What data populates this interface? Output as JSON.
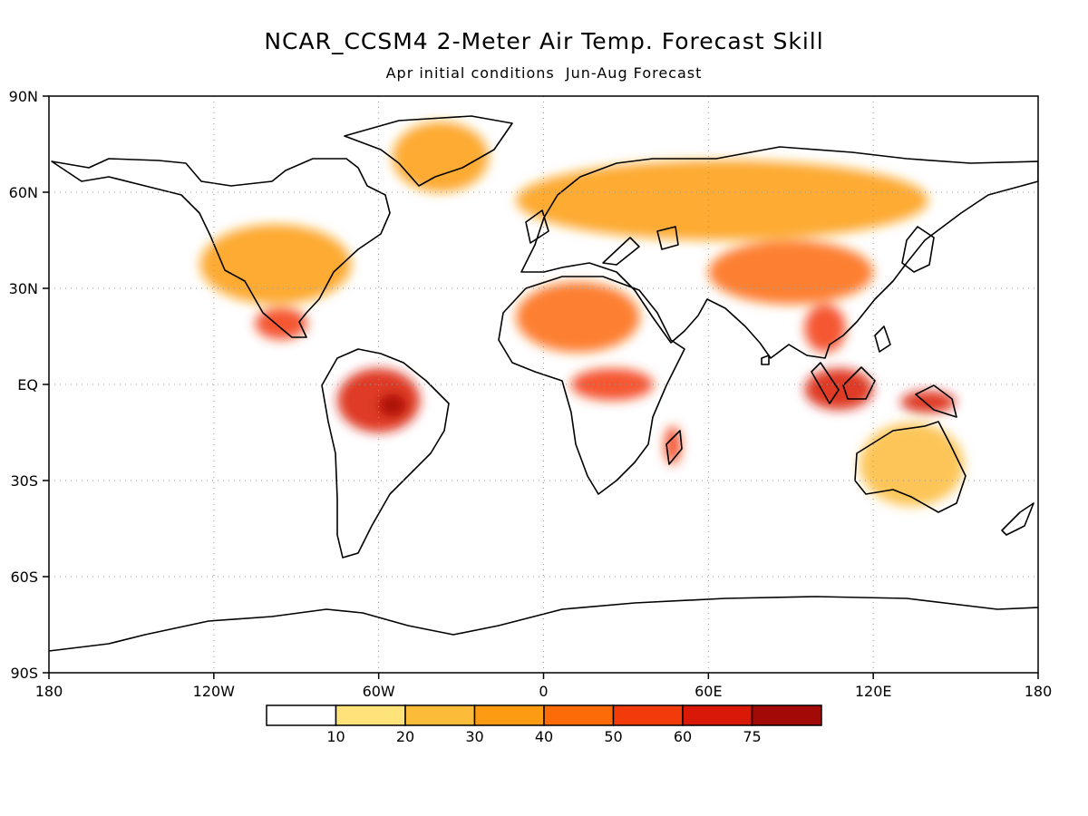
{
  "title": "NCAR_CCSM4 2-Meter Air Temp. Forecast Skill",
  "subtitle": "Apr initial conditions  Jun-Aug Forecast",
  "map": {
    "projection": "equirectangular",
    "lon_range": [
      -180,
      180
    ],
    "lat_range": [
      -90,
      90
    ],
    "grid": "dotted",
    "lat_ticks": [
      {
        "lat": 90,
        "label": "90N"
      },
      {
        "lat": 60,
        "label": "60N"
      },
      {
        "lat": 30,
        "label": "30N"
      },
      {
        "lat": 0,
        "label": "EQ"
      },
      {
        "lat": -30,
        "label": "30S"
      },
      {
        "lat": -60,
        "label": "60S"
      },
      {
        "lat": -90,
        "label": "90S"
      }
    ],
    "lon_ticks": [
      {
        "lon": -180,
        "label": "180"
      },
      {
        "lon": -120,
        "label": "120W"
      },
      {
        "lon": -60,
        "label": "60W"
      },
      {
        "lon": 0,
        "label": "0"
      },
      {
        "lon": 60,
        "label": "60E"
      },
      {
        "lon": 120,
        "label": "120E"
      },
      {
        "lon": 180,
        "label": "180"
      }
    ]
  },
  "colorbar": {
    "colors": [
      "#ffffff",
      "#fee37a",
      "#fdbb3a",
      "#fd9c12",
      "#fd6a08",
      "#f33a0b",
      "#d91807",
      "#a10a06"
    ],
    "labels": [
      "10",
      "20",
      "30",
      "40",
      "50",
      "60",
      "75"
    ]
  },
  "chart_data": {
    "type": "heatmap",
    "title": "NCAR_CCSM4 2-Meter Air Temp. Forecast Skill",
    "subtitle": "Apr initial conditions  Jun-Aug Forecast",
    "variable_levels": [
      10,
      20,
      30,
      40,
      50,
      60,
      75
    ],
    "regions": [
      {
        "lon": [
          -125,
          -70
        ],
        "lat": [
          25,
          50
        ],
        "level": 30
      },
      {
        "lon": [
          -105,
          -86
        ],
        "lat": [
          14,
          24
        ],
        "level": 50
      },
      {
        "lon": [
          -75,
          -45
        ],
        "lat": [
          -15,
          5
        ],
        "level": 60
      },
      {
        "lon": [
          -60,
          -50
        ],
        "lat": [
          -10,
          -3
        ],
        "level": 75
      },
      {
        "lon": [
          -10,
          35
        ],
        "lat": [
          10,
          32
        ],
        "level": 40
      },
      {
        "lon": [
          10,
          40
        ],
        "lat": [
          -5,
          5
        ],
        "level": 50
      },
      {
        "lon": [
          44,
          50
        ],
        "lat": [
          -25,
          -13
        ],
        "level": 50
      },
      {
        "lon": [
          -10,
          140
        ],
        "lat": [
          45,
          70
        ],
        "level": 30
      },
      {
        "lon": [
          60,
          120
        ],
        "lat": [
          25,
          45
        ],
        "level": 40
      },
      {
        "lon": [
          95,
          110
        ],
        "lat": [
          10,
          25
        ],
        "level": 50
      },
      {
        "lon": [
          95,
          120
        ],
        "lat": [
          -8,
          5
        ],
        "level": 60
      },
      {
        "lon": [
          130,
          150
        ],
        "lat": [
          -9,
          -2
        ],
        "level": 60
      },
      {
        "lon": [
          115,
          153
        ],
        "lat": [
          -38,
          -12
        ],
        "level": 20
      },
      {
        "lon": [
          -55,
          -20
        ],
        "lat": [
          60,
          82
        ],
        "level": 30
      }
    ]
  }
}
